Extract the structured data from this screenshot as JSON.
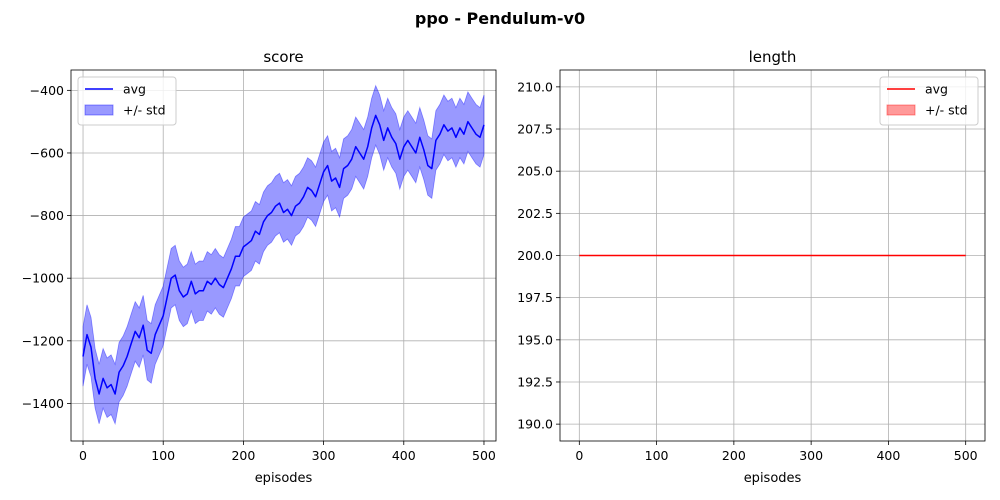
{
  "figure": {
    "title": "ppo - Pendulum-v0"
  },
  "chart_data": [
    {
      "type": "line",
      "title": "score",
      "xlabel": "episodes",
      "ylabel": "",
      "xlim": [
        -15,
        515
      ],
      "ylim": [
        -1520,
        -335
      ],
      "xticks": [
        0,
        100,
        200,
        300,
        400,
        500
      ],
      "xtick_labels": [
        "0",
        "100",
        "200",
        "300",
        "400",
        "500"
      ],
      "yticks": [
        -1400,
        -1200,
        -1000,
        -800,
        -600,
        -400
      ],
      "ytick_labels": [
        "−1400",
        "−1200",
        "−1000",
        "−800",
        "−600",
        "−400"
      ],
      "grid": true,
      "legend_position": "upper-left",
      "legend": {
        "line_label": "avg",
        "band_label": "+/- std"
      },
      "line_color": "#0000ff",
      "band_color": "#0000ff",
      "series": [
        {
          "name": "avg",
          "x": [
            0,
            5,
            10,
            15,
            20,
            25,
            30,
            35,
            40,
            45,
            50,
            55,
            60,
            65,
            70,
            75,
            80,
            85,
            90,
            95,
            100,
            105,
            110,
            115,
            120,
            125,
            130,
            135,
            140,
            145,
            150,
            155,
            160,
            165,
            170,
            175,
            180,
            185,
            190,
            195,
            200,
            205,
            210,
            215,
            220,
            225,
            230,
            235,
            240,
            245,
            250,
            255,
            260,
            265,
            270,
            275,
            280,
            285,
            290,
            295,
            300,
            305,
            310,
            315,
            320,
            325,
            330,
            335,
            340,
            345,
            350,
            355,
            360,
            365,
            370,
            375,
            380,
            385,
            390,
            395,
            400,
            405,
            410,
            415,
            420,
            425,
            430,
            435,
            440,
            445,
            450,
            455,
            460,
            465,
            470,
            475,
            480,
            485,
            490,
            495,
            500
          ],
          "y": [
            -1250,
            -1180,
            -1220,
            -1320,
            -1370,
            -1320,
            -1350,
            -1340,
            -1370,
            -1300,
            -1280,
            -1250,
            -1210,
            -1170,
            -1190,
            -1150,
            -1230,
            -1240,
            -1180,
            -1150,
            -1120,
            -1060,
            -1000,
            -990,
            -1040,
            -1060,
            -1050,
            -1010,
            -1050,
            -1040,
            -1040,
            -1010,
            -1020,
            -1000,
            -1020,
            -1030,
            -1000,
            -970,
            -930,
            -930,
            -900,
            -890,
            -880,
            -850,
            -860,
            -820,
            -800,
            -790,
            -770,
            -760,
            -790,
            -780,
            -800,
            -770,
            -760,
            -740,
            -710,
            -720,
            -740,
            -700,
            -660,
            -640,
            -690,
            -680,
            -710,
            -650,
            -640,
            -620,
            -580,
            -600,
            -620,
            -580,
            -520,
            -480,
            -510,
            -560,
            -520,
            -550,
            -570,
            -620,
            -580,
            -560,
            -580,
            -600,
            -550,
            -590,
            -640,
            -650,
            -560,
            -540,
            -510,
            -530,
            -520,
            -550,
            -520,
            -540,
            -500,
            -520,
            -540,
            -550,
            -510
          ]
        },
        {
          "name": "+/- std",
          "x": [
            0,
            5,
            10,
            15,
            20,
            25,
            30,
            35,
            40,
            45,
            50,
            55,
            60,
            65,
            70,
            75,
            80,
            85,
            90,
            95,
            100,
            105,
            110,
            115,
            120,
            125,
            130,
            135,
            140,
            145,
            150,
            155,
            160,
            165,
            170,
            175,
            180,
            185,
            190,
            195,
            200,
            205,
            210,
            215,
            220,
            225,
            230,
            235,
            240,
            245,
            250,
            255,
            260,
            265,
            270,
            275,
            280,
            285,
            290,
            295,
            300,
            305,
            310,
            315,
            320,
            325,
            330,
            335,
            340,
            345,
            350,
            355,
            360,
            365,
            370,
            375,
            380,
            385,
            390,
            395,
            400,
            405,
            410,
            415,
            420,
            425,
            430,
            435,
            440,
            445,
            450,
            455,
            460,
            465,
            470,
            475,
            480,
            485,
            490,
            495,
            500
          ],
          "lower": [
            -1345,
            -1275,
            -1315,
            -1415,
            -1465,
            -1415,
            -1445,
            -1435,
            -1465,
            -1395,
            -1375,
            -1345,
            -1305,
            -1265,
            -1285,
            -1245,
            -1325,
            -1335,
            -1275,
            -1245,
            -1215,
            -1155,
            -1095,
            -1085,
            -1135,
            -1155,
            -1145,
            -1105,
            -1145,
            -1135,
            -1135,
            -1105,
            -1115,
            -1095,
            -1115,
            -1125,
            -1095,
            -1065,
            -1025,
            -1025,
            -995,
            -985,
            -975,
            -945,
            -955,
            -915,
            -895,
            -885,
            -865,
            -855,
            -885,
            -875,
            -895,
            -865,
            -855,
            -835,
            -805,
            -815,
            -835,
            -795,
            -755,
            -735,
            -785,
            -775,
            -805,
            -745,
            -735,
            -715,
            -675,
            -695,
            -715,
            -675,
            -615,
            -575,
            -605,
            -655,
            -615,
            -645,
            -665,
            -715,
            -675,
            -655,
            -675,
            -695,
            -645,
            -685,
            -735,
            -745,
            -655,
            -635,
            -605,
            -625,
            -615,
            -645,
            -615,
            -635,
            -595,
            -615,
            -635,
            -645,
            -605
          ],
          "upper": [
            -1155,
            -1085,
            -1125,
            -1225,
            -1275,
            -1225,
            -1255,
            -1245,
            -1275,
            -1205,
            -1185,
            -1155,
            -1115,
            -1075,
            -1095,
            -1055,
            -1135,
            -1145,
            -1085,
            -1055,
            -1025,
            -965,
            -905,
            -895,
            -945,
            -965,
            -955,
            -915,
            -955,
            -945,
            -945,
            -915,
            -925,
            -905,
            -925,
            -935,
            -905,
            -875,
            -835,
            -835,
            -805,
            -795,
            -785,
            -755,
            -765,
            -725,
            -705,
            -695,
            -675,
            -665,
            -695,
            -685,
            -705,
            -675,
            -665,
            -645,
            -615,
            -625,
            -645,
            -605,
            -565,
            -545,
            -595,
            -585,
            -615,
            -555,
            -545,
            -525,
            -485,
            -505,
            -525,
            -485,
            -425,
            -385,
            -415,
            -465,
            -425,
            -455,
            -475,
            -525,
            -485,
            -465,
            -485,
            -505,
            -455,
            -495,
            -545,
            -555,
            -465,
            -445,
            -415,
            -435,
            -425,
            -455,
            -425,
            -445,
            -405,
            -425,
            -445,
            -455,
            -415
          ]
        }
      ]
    },
    {
      "type": "line",
      "title": "length",
      "xlabel": "episodes",
      "ylabel": "",
      "xlim": [
        -25,
        525
      ],
      "ylim": [
        189.0,
        211.0
      ],
      "xticks": [
        0,
        100,
        200,
        300,
        400,
        500
      ],
      "xtick_labels": [
        "0",
        "100",
        "200",
        "300",
        "400",
        "500"
      ],
      "yticks": [
        190.0,
        192.5,
        195.0,
        197.5,
        200.0,
        202.5,
        205.0,
        207.5,
        210.0
      ],
      "ytick_labels": [
        "190.0",
        "192.5",
        "195.0",
        "197.5",
        "200.0",
        "202.5",
        "205.0",
        "207.5",
        "210.0"
      ],
      "grid": true,
      "legend_position": "upper-right",
      "legend": {
        "line_label": "avg",
        "band_label": "+/- std"
      },
      "line_color": "#ff0000",
      "band_color": "#ff0000",
      "series": [
        {
          "name": "avg",
          "x": [
            0,
            500
          ],
          "y": [
            200,
            200
          ]
        },
        {
          "name": "+/- std",
          "x": [
            0,
            500
          ],
          "lower": [
            200,
            200
          ],
          "upper": [
            200,
            200
          ]
        }
      ]
    }
  ]
}
